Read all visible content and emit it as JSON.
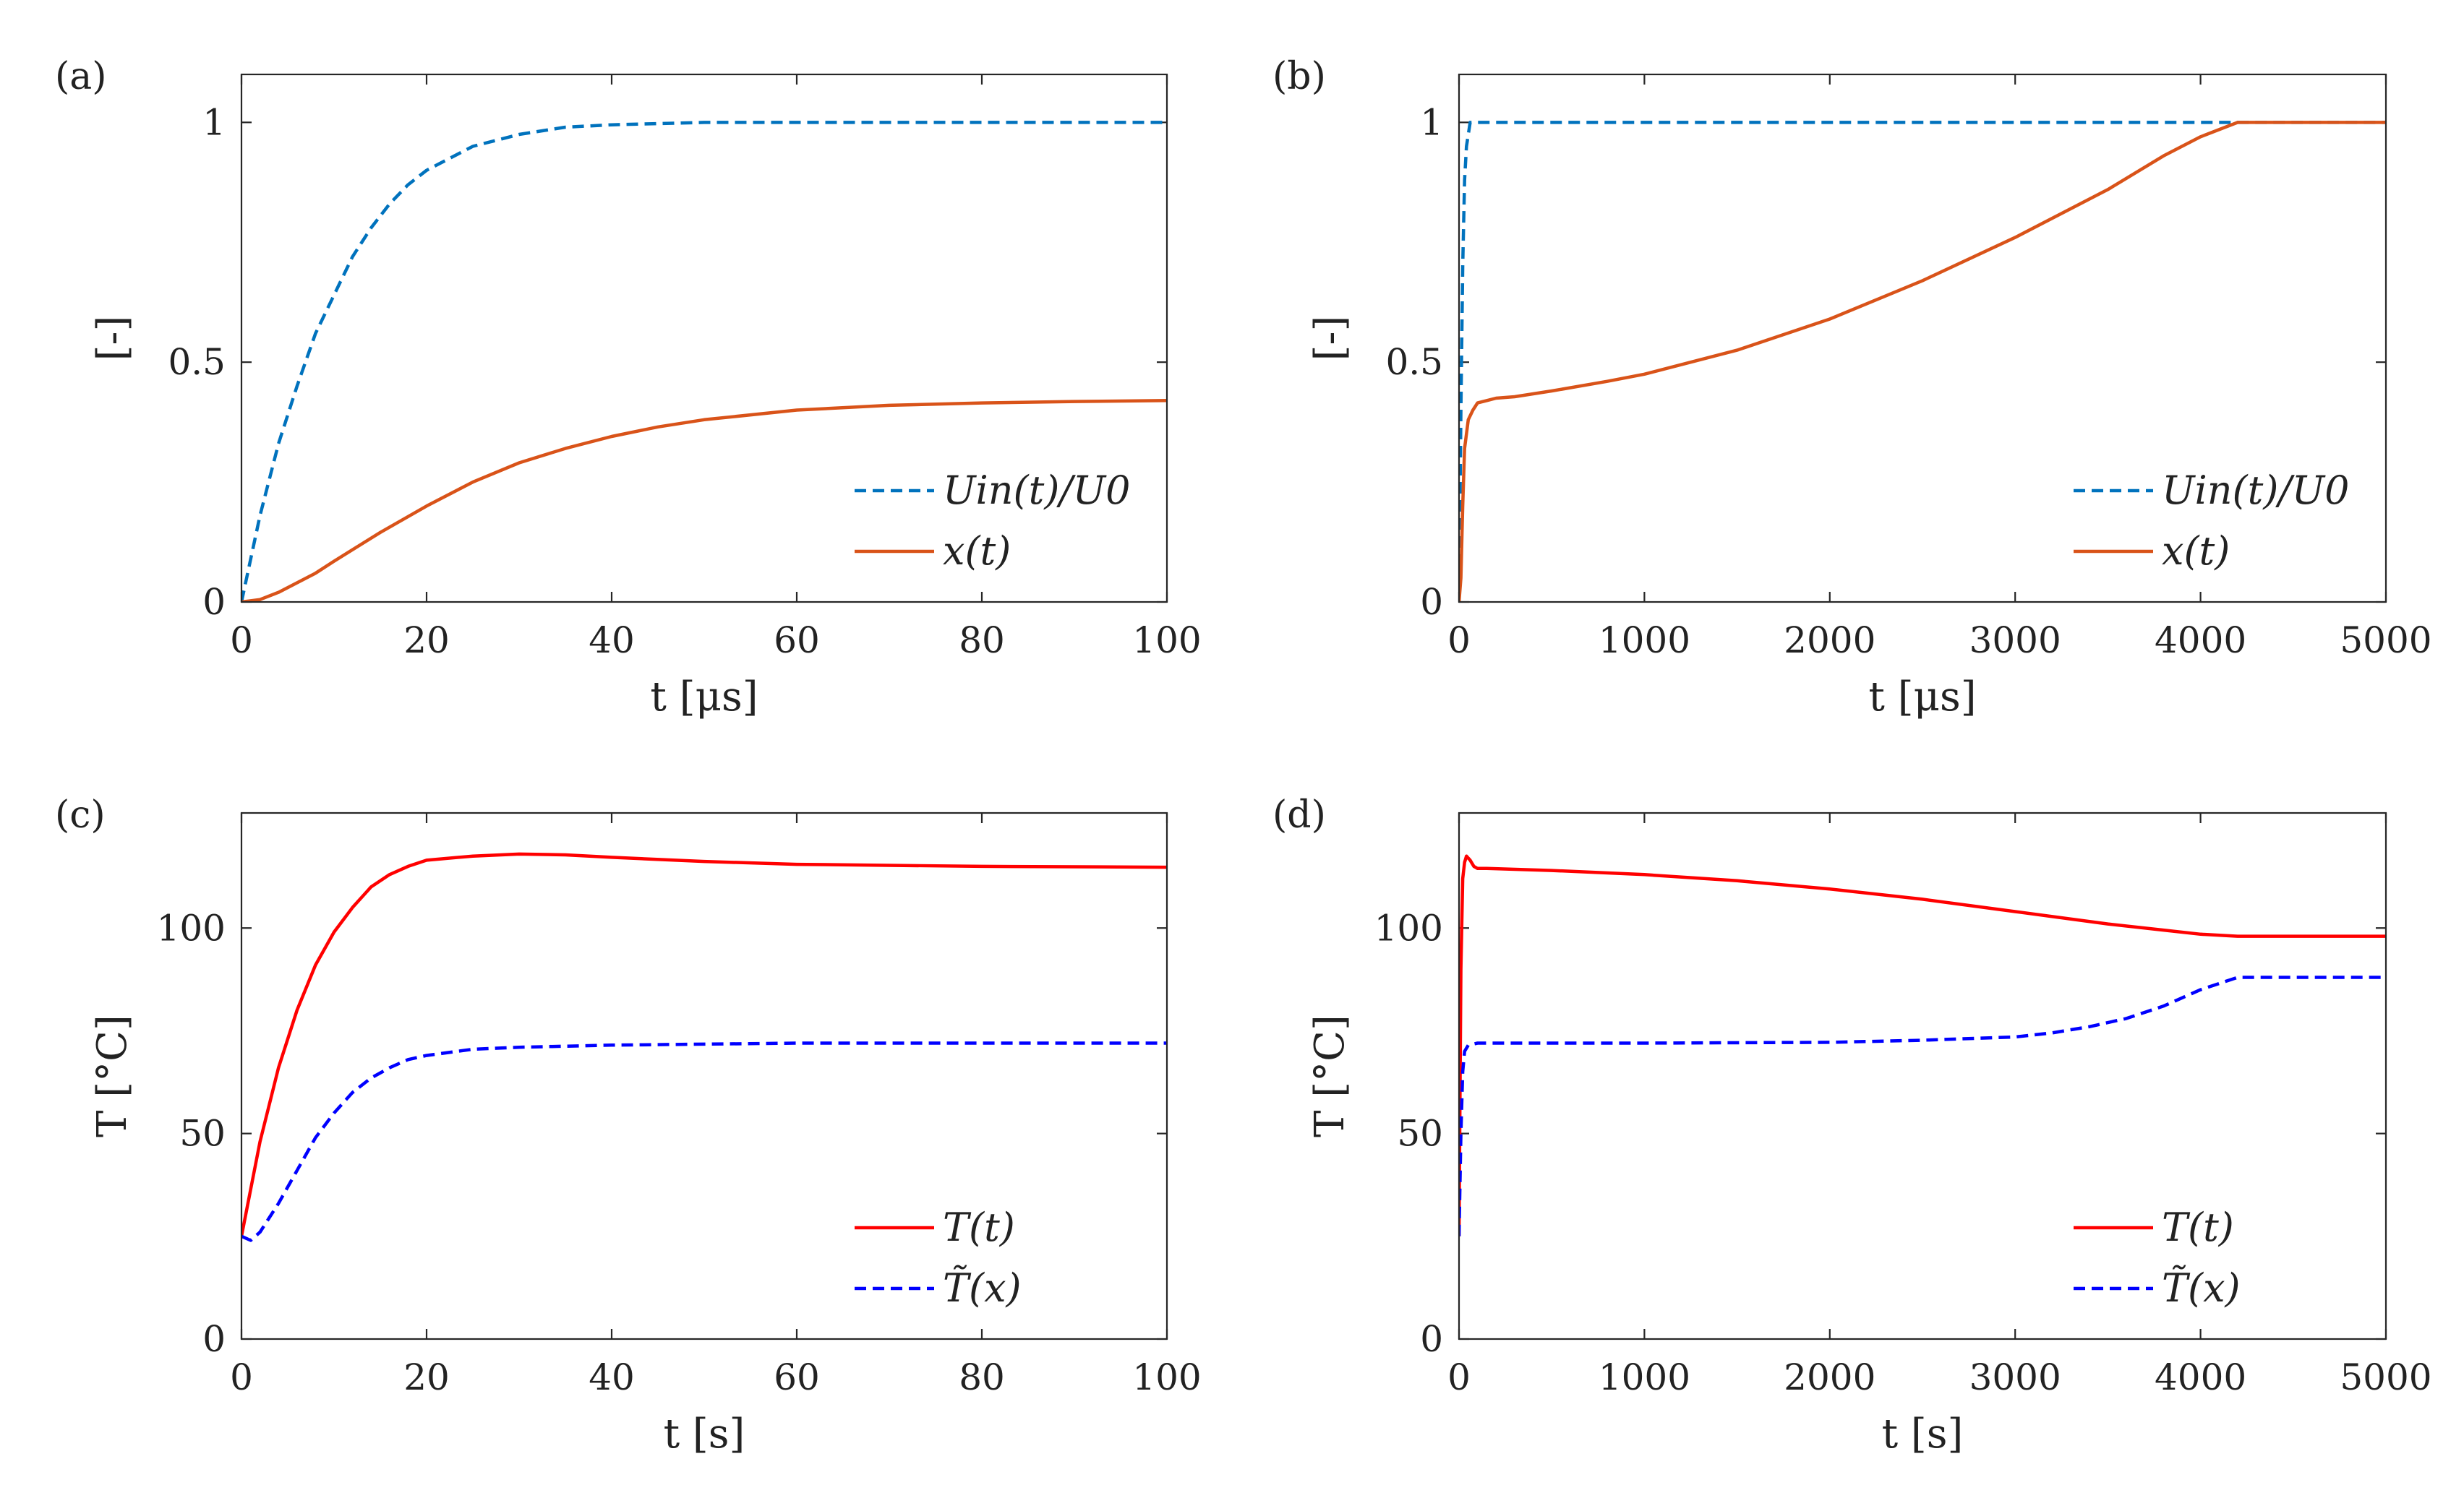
{
  "colors": {
    "uin": "#0072BD",
    "x": "#D95319",
    "T": "#FF0000",
    "Ttilde": "#0000FF"
  },
  "chart_data": [
    {
      "id": "a",
      "type": "line",
      "panel_label": "(a)",
      "xlabel": "t [μs]",
      "ylabel": "[-]",
      "xlim": [
        0,
        100
      ],
      "ylim": [
        0,
        1.1
      ],
      "xticks": [
        0,
        20,
        40,
        60,
        80,
        100
      ],
      "yticks": [
        0,
        0.5,
        1
      ],
      "xtick_labels": [
        "0",
        "20",
        "40",
        "60",
        "80",
        "100"
      ],
      "ytick_labels": [
        "0",
        "0.5",
        "1"
      ],
      "legend_position": "bottom-right",
      "series": [
        {
          "name": "Uin(t)/U0",
          "color_key": "uin",
          "dash": "dashed",
          "x": [
            0,
            2,
            4,
            6,
            8,
            10,
            12,
            14,
            16,
            18,
            20,
            25,
            30,
            35,
            40,
            50,
            60,
            80,
            100
          ],
          "y": [
            0,
            0.18,
            0.33,
            0.45,
            0.56,
            0.64,
            0.72,
            0.78,
            0.83,
            0.87,
            0.9,
            0.95,
            0.975,
            0.99,
            0.995,
            1.0,
            1.0,
            1.0,
            1.0
          ]
        },
        {
          "name": "x(t)",
          "color_key": "x",
          "dash": "solid",
          "x": [
            0,
            2,
            4,
            6,
            8,
            10,
            15,
            20,
            25,
            30,
            35,
            40,
            45,
            50,
            60,
            70,
            80,
            90,
            100
          ],
          "y": [
            0,
            0.005,
            0.02,
            0.04,
            0.06,
            0.085,
            0.145,
            0.2,
            0.25,
            0.29,
            0.32,
            0.345,
            0.365,
            0.38,
            0.4,
            0.41,
            0.415,
            0.418,
            0.42
          ]
        }
      ]
    },
    {
      "id": "b",
      "type": "line",
      "panel_label": "(b)",
      "xlabel": "t [μs]",
      "ylabel": "[-]",
      "xlim": [
        0,
        5000
      ],
      "ylim": [
        0,
        1.1
      ],
      "xticks": [
        0,
        1000,
        2000,
        3000,
        4000,
        5000
      ],
      "yticks": [
        0,
        0.5,
        1
      ],
      "xtick_labels": [
        "0",
        "1000",
        "2000",
        "3000",
        "4000",
        "5000"
      ],
      "ytick_labels": [
        "0",
        "0.5",
        "1"
      ],
      "legend_position": "bottom-right",
      "series": [
        {
          "name": "Uin(t)/U0",
          "color_key": "uin",
          "dash": "dashed",
          "x": [
            0,
            10,
            20,
            30,
            40,
            60,
            100,
            5000
          ],
          "y": [
            0,
            0.4,
            0.7,
            0.88,
            0.95,
            1.0,
            1.0,
            1.0
          ]
        },
        {
          "name": "x(t)",
          "color_key": "x",
          "dash": "solid",
          "x": [
            0,
            10,
            20,
            30,
            50,
            75,
            100,
            150,
            200,
            300,
            500,
            800,
            1000,
            1500,
            2000,
            2500,
            3000,
            3500,
            3800,
            4000,
            4200,
            4500,
            5000
          ],
          "y": [
            0,
            0.05,
            0.2,
            0.32,
            0.38,
            0.4,
            0.415,
            0.42,
            0.425,
            0.428,
            0.44,
            0.46,
            0.475,
            0.525,
            0.59,
            0.67,
            0.76,
            0.86,
            0.93,
            0.97,
            1.0,
            1.0,
            1.0
          ]
        }
      ]
    },
    {
      "id": "c",
      "type": "line",
      "panel_label": "(c)",
      "xlabel": "t [s]",
      "ylabel": "T [°C]",
      "xlim": [
        0,
        100
      ],
      "ylim": [
        0,
        128
      ],
      "xticks": [
        0,
        20,
        40,
        60,
        80,
        100
      ],
      "yticks": [
        0,
        50,
        100
      ],
      "xtick_labels": [
        "0",
        "20",
        "40",
        "60",
        "80",
        "100"
      ],
      "ytick_labels": [
        "0",
        "50",
        "100"
      ],
      "legend_position": "bottom-right",
      "series": [
        {
          "name": "T(t)",
          "color_key": "T",
          "dash": "solid",
          "x": [
            0,
            2,
            4,
            6,
            8,
            10,
            12,
            14,
            16,
            18,
            20,
            25,
            30,
            35,
            40,
            50,
            60,
            80,
            100
          ],
          "y": [
            25,
            48,
            66,
            80,
            91,
            99,
            105,
            110,
            113,
            115,
            116.5,
            117.5,
            118,
            117.8,
            117.2,
            116.2,
            115.5,
            115,
            114.8
          ]
        },
        {
          "name": "T̃(x)",
          "color_key": "Ttilde",
          "dash": "dashed",
          "x": [
            0,
            1,
            2,
            4,
            6,
            8,
            10,
            12,
            14,
            16,
            18,
            20,
            25,
            30,
            40,
            60,
            80,
            100
          ],
          "y": [
            25,
            24,
            26,
            33,
            41,
            49,
            55,
            60,
            63.5,
            66,
            68,
            69,
            70.5,
            71,
            71.5,
            72,
            72,
            72
          ]
        }
      ]
    },
    {
      "id": "d",
      "type": "line",
      "panel_label": "(d)",
      "xlabel": "t [s]",
      "ylabel": "T [°C]",
      "xlim": [
        0,
        5000
      ],
      "ylim": [
        0,
        128
      ],
      "xticks": [
        0,
        1000,
        2000,
        3000,
        4000,
        5000
      ],
      "yticks": [
        0,
        50,
        100
      ],
      "xtick_labels": [
        "0",
        "1000",
        "2000",
        "3000",
        "4000",
        "5000"
      ],
      "ytick_labels": [
        "0",
        "50",
        "100"
      ],
      "legend_position": "bottom-right",
      "series": [
        {
          "name": "T(t)",
          "color_key": "T",
          "dash": "solid",
          "x": [
            0,
            10,
            20,
            30,
            40,
            60,
            80,
            100,
            150,
            500,
            1000,
            1500,
            2000,
            2500,
            3000,
            3500,
            3800,
            4000,
            4200,
            4500,
            5000
          ],
          "y": [
            25,
            90,
            112,
            116,
            117.5,
            116.5,
            115,
            114.5,
            114.5,
            114,
            113,
            111.5,
            109.5,
            107,
            104,
            101,
            99.5,
            98.5,
            98,
            98,
            98
          ]
        },
        {
          "name": "T̃(x)",
          "color_key": "Ttilde",
          "dash": "dashed",
          "x": [
            0,
            10,
            20,
            30,
            50,
            100,
            500,
            1000,
            2000,
            2500,
            3000,
            3200,
            3400,
            3600,
            3800,
            4000,
            4200,
            4500,
            5000
          ],
          "y": [
            25,
            50,
            65,
            70,
            71.5,
            72,
            72,
            72,
            72.2,
            72.7,
            73.5,
            74.5,
            76,
            78,
            81,
            85,
            88,
            88,
            88
          ]
        }
      ]
    }
  ]
}
